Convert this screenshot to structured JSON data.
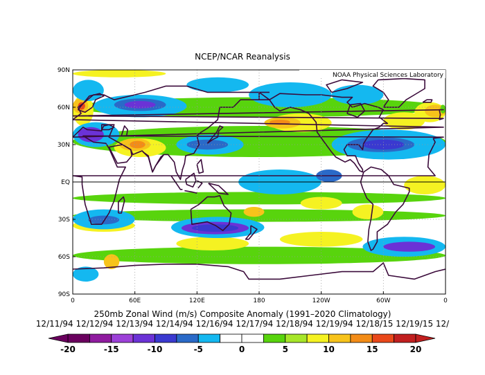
{
  "title": "NCEP/NCAR Reanalysis",
  "credit": "NOAA Physical Sciences Laboratory",
  "caption": "250mb Zonal Wind (m/s) Composite Anomaly (1991–2020 Climatology)",
  "dates": "12/11/94 12/12/94 12/13/94 12/14/94 12/16/94 12/17/94 12/18/94 12/19/94 12/18/15 12/19/15 12/",
  "lat_labels": [
    "90N",
    "60N",
    "30N",
    "EQ",
    "30S",
    "60S",
    "90S"
  ],
  "lon_labels": [
    "0",
    "60E",
    "120E",
    "180",
    "120W",
    "60W",
    "0"
  ],
  "colorbar": {
    "tick_labels": [
      "-20",
      "-15",
      "-10",
      "-5",
      "0",
      "5",
      "10",
      "15",
      "20"
    ],
    "colors": [
      "#6a005e",
      "#8f1b9f",
      "#9c40d8",
      "#6b32d6",
      "#3a39d0",
      "#2a6ac8",
      "#14b8f0",
      "#ffffff",
      "#ffffff",
      "#58d40d",
      "#a6e629",
      "#f5f222",
      "#f7c31b",
      "#f38c17",
      "#e9481a",
      "#c11f1f"
    ]
  },
  "map_colors": {
    "coast": "#3a0a3a",
    "strong_neg": "#3a39d0",
    "neg": "#6b32d6",
    "mod_neg": "#2a6ac8",
    "weak_neg": "#14b8f0",
    "weak_pos": "#58d40d",
    "pos": "#a6e629",
    "mod_pos": "#f5f222",
    "strong_pos": "#f7c31b",
    "vstrong_pos": "#f38c17",
    "extreme_pos": "#e9481a"
  }
}
